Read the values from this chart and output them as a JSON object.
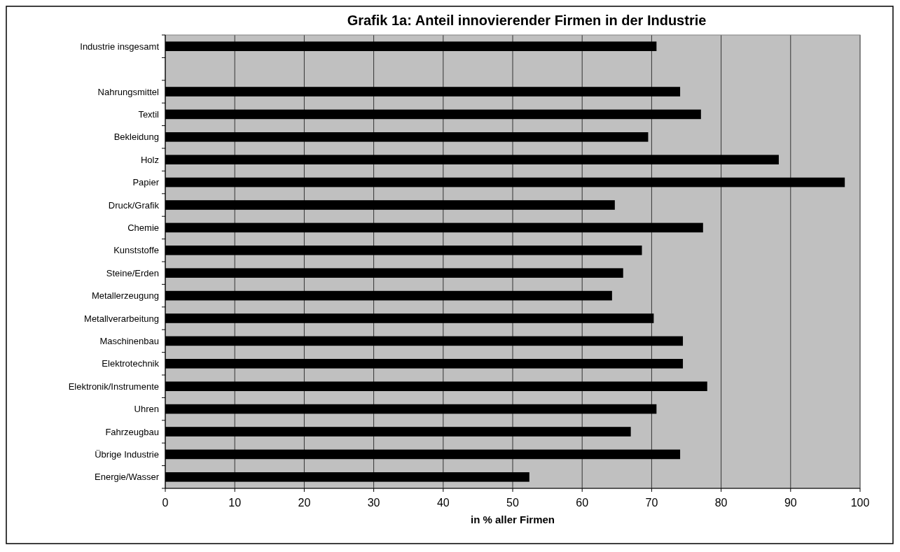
{
  "chart_data": {
    "type": "bar",
    "orientation": "horizontal",
    "title": "Grafik 1a: Anteil innovierender Firmen in der Industrie",
    "xlabel": "in % aller Firmen",
    "categories": [
      "Industrie insgesamt",
      null,
      "Nahrungsmittel",
      "Textil",
      "Bekleidung",
      "Holz",
      "Papier",
      "Druck/Grafik",
      "Chemie",
      "Kunststoffe",
      "Steine/Erden",
      "Metallerzeugung",
      "Metallverarbeitung",
      "Maschinenbau",
      "Elektrotechnik",
      "Elektronik/Instrumente",
      "Uhren",
      "Fahrzeugbau",
      "Übrige Industrie",
      "Energie/Wasser"
    ],
    "values": [
      70.7,
      null,
      74.1,
      77.1,
      69.5,
      88.3,
      97.8,
      64.7,
      77.4,
      68.6,
      65.9,
      64.3,
      70.3,
      74.5,
      74.5,
      78.0,
      70.7,
      67.0,
      74.1,
      52.4
    ],
    "color": "#000000",
    "xlim": [
      0,
      100
    ],
    "xticks": [
      0,
      10,
      20,
      30,
      40,
      50,
      60,
      70,
      80,
      90,
      100
    ],
    "grid": "x"
  }
}
